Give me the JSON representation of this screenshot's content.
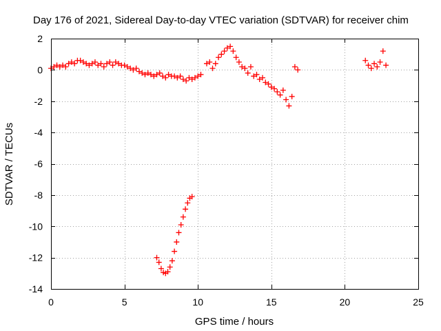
{
  "chart_data": {
    "type": "scatter",
    "title": "Day 176 of 2021, Sidereal Day-to-day VTEC variation (SDTVAR) for receiver chim",
    "xlabel": "GPS time / hours",
    "ylabel": "SDTVAR / TECUs",
    "xlim": [
      0,
      25
    ],
    "ylim": [
      -14,
      2
    ],
    "x_ticks": [
      0,
      5,
      10,
      15,
      20,
      25
    ],
    "y_ticks": [
      -14,
      -12,
      -10,
      -8,
      -6,
      -4,
      -2,
      0,
      2
    ],
    "x_tick_labels": [
      "0",
      "5",
      "10",
      "15",
      "20",
      "25"
    ],
    "y_tick_labels": [
      "-14",
      "-12",
      "-10",
      "-8",
      "-6",
      "-4",
      "-2",
      "0",
      "2"
    ],
    "grid": true,
    "marker": "plus",
    "series": [
      {
        "name": "SDTVAR",
        "color": "#ff0000",
        "x": [
          0.0,
          0.2,
          0.4,
          0.6,
          0.8,
          1.0,
          1.2,
          1.4,
          1.6,
          1.8,
          2.0,
          2.2,
          2.4,
          2.6,
          2.8,
          3.0,
          3.2,
          3.4,
          3.6,
          3.8,
          4.0,
          4.2,
          4.4,
          4.6,
          4.8,
          5.0,
          5.2,
          5.4,
          5.6,
          5.8,
          6.0,
          6.2,
          6.4,
          6.6,
          6.8,
          7.0,
          7.2,
          7.4,
          7.6,
          7.8,
          8.0,
          8.2,
          8.4,
          8.6,
          8.8,
          9.0,
          9.2,
          9.4,
          9.6,
          9.8,
          10.0,
          10.2,
          7.2,
          7.35,
          7.5,
          7.65,
          7.8,
          7.95,
          8.1,
          8.25,
          8.4,
          8.55,
          8.7,
          8.85,
          9.0,
          9.15,
          9.3,
          9.45,
          9.6,
          10.6,
          10.8,
          11.0,
          11.2,
          11.4,
          11.6,
          11.8,
          12.0,
          12.2,
          12.4,
          12.6,
          12.8,
          13.0,
          13.2,
          13.4,
          13.6,
          13.8,
          14.0,
          14.2,
          14.4,
          14.6,
          14.8,
          15.0,
          15.2,
          15.4,
          15.6,
          15.8,
          16.0,
          16.2,
          16.4,
          16.6,
          16.8,
          21.4,
          21.6,
          21.8,
          22.0,
          22.2,
          22.4,
          22.6,
          22.8
        ],
        "y": [
          0.1,
          0.2,
          0.3,
          0.2,
          0.3,
          0.2,
          0.4,
          0.5,
          0.4,
          0.6,
          0.6,
          0.5,
          0.4,
          0.3,
          0.4,
          0.5,
          0.3,
          0.4,
          0.2,
          0.4,
          0.5,
          0.3,
          0.5,
          0.4,
          0.3,
          0.3,
          0.2,
          0.1,
          0.0,
          0.1,
          -0.1,
          -0.2,
          -0.3,
          -0.2,
          -0.3,
          -0.4,
          -0.3,
          -0.2,
          -0.4,
          -0.5,
          -0.3,
          -0.4,
          -0.4,
          -0.5,
          -0.4,
          -0.6,
          -0.7,
          -0.5,
          -0.6,
          -0.5,
          -0.4,
          -0.3,
          -12.0,
          -12.3,
          -12.7,
          -12.95,
          -13.0,
          -12.9,
          -12.6,
          -12.2,
          -11.6,
          -11.0,
          -10.4,
          -9.9,
          -9.4,
          -8.9,
          -8.5,
          -8.2,
          -8.1,
          0.4,
          0.5,
          0.1,
          0.4,
          0.8,
          1.0,
          1.2,
          1.4,
          1.5,
          1.2,
          0.8,
          0.5,
          0.2,
          0.1,
          -0.2,
          0.2,
          -0.4,
          -0.3,
          -0.6,
          -0.5,
          -0.8,
          -0.9,
          -1.1,
          -1.2,
          -1.4,
          -1.6,
          -1.3,
          -1.9,
          -2.3,
          -1.7,
          0.2,
          0.0,
          0.6,
          0.3,
          0.1,
          0.4,
          0.2,
          0.5,
          1.2,
          0.3
        ]
      }
    ]
  }
}
